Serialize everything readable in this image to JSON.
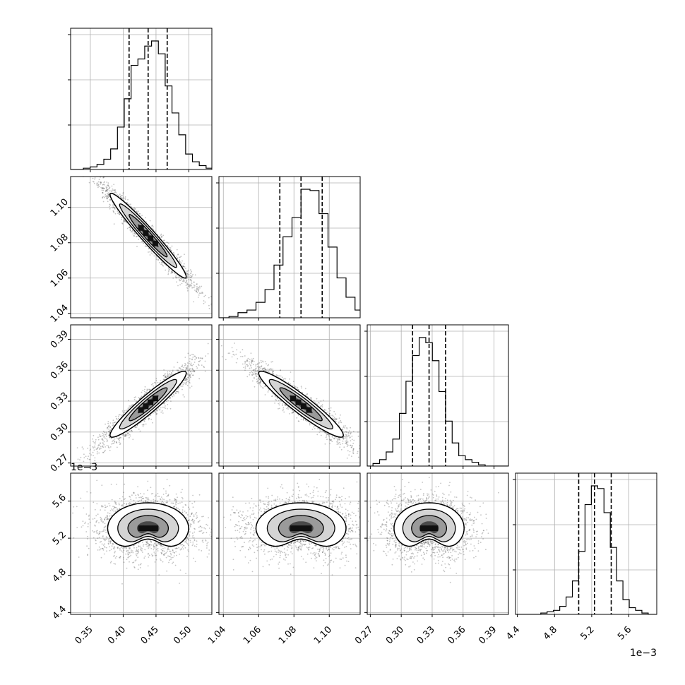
{
  "chart_data": {
    "type": "corner",
    "title": "",
    "parameters": [
      {
        "index": 0,
        "range": [
          0.32,
          0.535
        ],
        "ticks": [
          0.35,
          0.4,
          0.45,
          0.5
        ],
        "tick_labels": [
          "0.35",
          "0.40",
          "0.45",
          "0.50"
        ],
        "offset_label": "",
        "quantiles": [
          0.409,
          0.438,
          0.467
        ],
        "mean": 0.438,
        "sd": 0.029
      },
      {
        "index": 1,
        "range": [
          1.0375,
          1.1175
        ],
        "ticks": [
          1.04,
          1.06,
          1.08,
          1.1
        ],
        "tick_labels": [
          "1.04",
          "1.06",
          "1.08",
          "1.10"
        ],
        "offset_label": "",
        "quantiles": [
          1.072,
          1.084,
          1.096
        ],
        "mean": 1.084,
        "sd": 0.012
      },
      {
        "index": 2,
        "range": [
          0.267,
          0.404
        ],
        "ticks": [
          0.27,
          0.3,
          0.33,
          0.36,
          0.39
        ],
        "tick_labels": [
          "0.27",
          "0.30",
          "0.33",
          "0.36",
          "0.39"
        ],
        "offset_label": "",
        "quantiles": [
          0.311,
          0.327,
          0.343
        ],
        "mean": 0.327,
        "sd": 0.016
      },
      {
        "index": 3,
        "range": [
          4.38,
          5.9
        ],
        "ticks": [
          4.4,
          4.8,
          5.2,
          5.6
        ],
        "tick_labels": [
          "4.4",
          "4.8",
          "5.2",
          "5.6"
        ],
        "offset_label": "1e−3",
        "quantiles": [
          5.06,
          5.23,
          5.41
        ],
        "mean": 5.23,
        "sd": 0.17
      }
    ],
    "histograms": [
      {
        "param": 0,
        "counts": [
          1,
          2,
          4,
          8,
          16,
          33,
          55,
          81,
          86,
          96,
          100,
          90,
          65,
          44,
          27,
          12,
          6,
          3,
          1
        ]
      },
      {
        "param": 1,
        "counts": [
          1,
          4,
          6,
          12,
          22,
          41,
          63,
          78,
          100,
          99,
          81,
          55,
          31,
          16,
          6,
          3
        ]
      },
      {
        "param": 2,
        "counts": [
          2,
          5,
          11,
          21,
          41,
          66,
          86,
          100,
          96,
          82,
          58,
          35,
          18,
          8,
          5,
          3,
          1
        ]
      },
      {
        "param": 3,
        "counts": [
          1,
          2,
          3,
          6,
          13,
          25,
          47,
          82,
          96,
          94,
          76,
          50,
          25,
          11,
          5,
          3,
          1
        ]
      }
    ],
    "correlations": [
      {
        "x": 0,
        "y": 1,
        "rho": -0.97,
        "shape": "ellipse"
      },
      {
        "x": 0,
        "y": 2,
        "rho": 0.94,
        "shape": "ellipse"
      },
      {
        "x": 1,
        "y": 2,
        "rho": -0.94,
        "shape": "ellipse"
      },
      {
        "x": 0,
        "y": 3,
        "rho": 0.0,
        "shape": "crescent"
      },
      {
        "x": 1,
        "y": 3,
        "rho": 0.0,
        "shape": "crescent"
      },
      {
        "x": 2,
        "y": 3,
        "rho": 0.0,
        "shape": "crescent"
      }
    ],
    "grid": true,
    "legend": "none"
  }
}
